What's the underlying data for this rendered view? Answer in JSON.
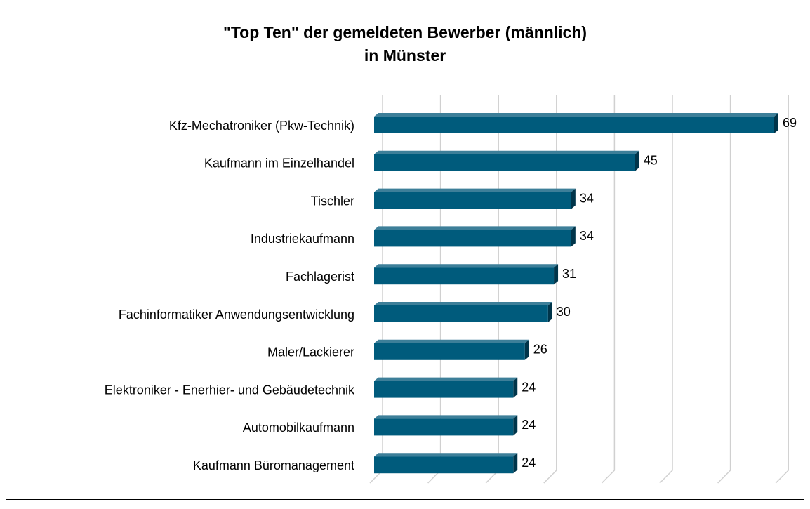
{
  "chart_data": {
    "type": "bar",
    "orientation": "horizontal",
    "title": [
      "\"Top Ten\" der gemeldeten Bewerber (männlich)",
      "in Münster"
    ],
    "categories": [
      "Kfz-Mechatroniker (Pkw-Technik)",
      "Kaufmann im Einzelhandel",
      "Tischler",
      "Industriekaufmann",
      "Fachlagerist",
      "Fachinformatiker Anwendungsentwicklung",
      "Maler/Lackierer",
      "Elektroniker - Enerhier- und Gebäudetechnik",
      "Automobilkaufmann",
      "Kaufmann Büromanagement"
    ],
    "values": [
      69,
      45,
      34,
      34,
      31,
      30,
      26,
      24,
      24,
      24
    ],
    "color": "#005b7c",
    "xlim": [
      0,
      70
    ],
    "xticks": [
      0,
      10,
      20,
      30,
      40,
      50,
      60,
      70
    ],
    "grid": true
  }
}
